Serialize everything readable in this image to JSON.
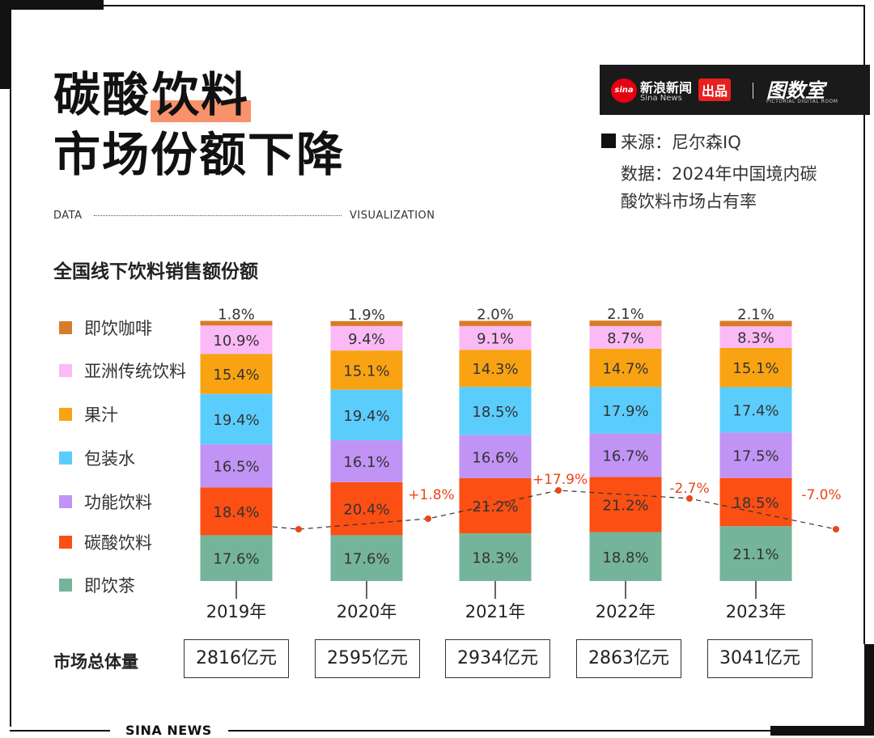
{
  "title": {
    "line1_a": "碳酸",
    "line1_b": "饮料",
    "line2": "市场份额下降"
  },
  "separator": {
    "left": "DATA",
    "right": "VISUALIZATION"
  },
  "brand": {
    "logo": "sina",
    "name_cn": "新浪新闻",
    "name_en": "Sina News",
    "badge": "出品",
    "studio": "图数室",
    "studio_en": "PICTORIAL DIGITAL ROOM"
  },
  "source": {
    "line1": "来源：尼尔森IQ",
    "line2": "数据：2024年中国境内碳",
    "line3": "酸饮料市场占有率"
  },
  "chart_subtitle": "全国线下饮料销售额份额",
  "totals_label": "市场总体量",
  "footer": "SINA NEWS",
  "chart_data": {
    "type": "bar",
    "stacked": true,
    "categories": [
      "2019年",
      "2020年",
      "2021年",
      "2022年",
      "2023年"
    ],
    "unit": "%",
    "series": [
      {
        "name": "即饮茶",
        "color": "#74b49a",
        "values": [
          17.6,
          17.6,
          18.3,
          18.8,
          21.1
        ]
      },
      {
        "name": "碳酸饮料",
        "color": "#fb4f14",
        "values": [
          18.4,
          20.4,
          21.2,
          21.2,
          18.5
        ]
      },
      {
        "name": "功能饮料",
        "color": "#c193f5",
        "values": [
          16.5,
          16.1,
          16.6,
          16.7,
          17.5
        ]
      },
      {
        "name": "包装水",
        "color": "#5bcdfd",
        "values": [
          19.4,
          19.4,
          18.5,
          17.9,
          17.4
        ]
      },
      {
        "name": "果汁",
        "color": "#f9a312",
        "values": [
          15.4,
          15.1,
          14.3,
          14.7,
          15.1
        ]
      },
      {
        "name": "亚洲传统饮料",
        "color": "#fbbaf5",
        "values": [
          10.9,
          9.4,
          9.1,
          8.7,
          8.3
        ]
      },
      {
        "name": "即饮咖啡",
        "color": "#d87b29",
        "values": [
          1.8,
          1.9,
          2.0,
          2.1,
          2.1
        ]
      }
    ],
    "legend_order": [
      "即饮咖啡",
      "亚洲传统饮料",
      "果汁",
      "包装水",
      "功能饮料",
      "碳酸饮料",
      "即饮茶"
    ],
    "growth_line": {
      "color": "#e8461c",
      "style": "dashed",
      "labels": [
        "+1.8%",
        "+17.9%",
        "-2.7%",
        "-7.0%"
      ],
      "values": [
        1.8,
        17.9,
        -2.7,
        -7.0
      ]
    },
    "totals": [
      "2816亿元",
      "2595亿元",
      "2934亿元",
      "2863亿元",
      "3041亿元"
    ]
  }
}
